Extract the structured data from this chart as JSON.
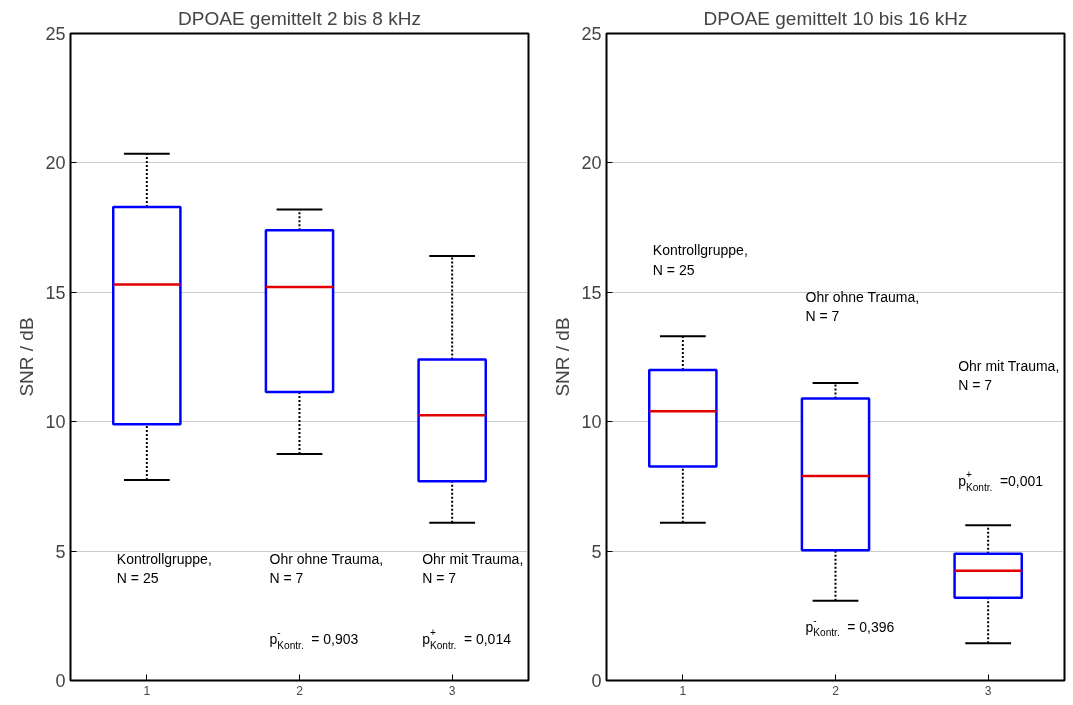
{
  "chart_data": [
    {
      "type": "box",
      "title": "DPOAE gemittelt 2 bis 8 kHz",
      "ylabel": "SNR / dB",
      "categories": [
        "1",
        "2",
        "3"
      ],
      "ylim": [
        0,
        25
      ],
      "yticks": [
        0,
        5,
        10,
        15,
        20,
        25
      ],
      "grid": "y",
      "series": [
        {
          "color": "#0000ff",
          "boxes": [
            {
              "low": 7.75,
              "q1": 9.9,
              "median": 15.3,
              "q3": 18.3,
              "high": 20.35
            },
            {
              "low": 8.75,
              "q1": 11.15,
              "median": 15.2,
              "q3": 17.4,
              "high": 18.2
            },
            {
              "low": 6.1,
              "q1": 7.7,
              "median": 10.25,
              "q3": 12.4,
              "high": 16.4
            }
          ]
        }
      ],
      "annotations": [
        "Kontrollgruppe,\nN = 25",
        "Ohr ohne Trauma,\nN = 7",
        "Ohr mit Trauma,\nN = 7",
        "p$^{-}$$_{Kontr.}$ = 0,903",
        "p$^{+}$$_{Kontr.}$ = 0,014"
      ]
    },
    {
      "type": "box",
      "title": "DPOAE gemittelt 10 bis 16 kHz",
      "ylabel": "SNR / dB",
      "categories": [
        "1",
        "2",
        "3"
      ],
      "ylim": [
        0,
        25
      ],
      "yticks": [
        0,
        5,
        10,
        15,
        20,
        25
      ],
      "grid": "y",
      "series": [
        {
          "color": "#0000ff",
          "boxes": [
            {
              "low": 6.1,
              "q1": 8.27,
              "median": 10.4,
              "q3": 12.0,
              "high": 13.3
            },
            {
              "low": 3.08,
              "q1": 5.03,
              "median": 7.9,
              "q3": 10.9,
              "high": 11.5
            },
            {
              "low": 1.44,
              "q1": 3.2,
              "median": 4.24,
              "q3": 4.9,
              "high": 6.0
            }
          ]
        }
      ],
      "annotations": [
        "Kontrollgruppe,\nN = 25",
        "Ohr ohne Trauma,\nN = 7",
        "Ohr mit Trauma,\nN = 7",
        "p$^{-}$$_{Kontr.}$ = 0,396",
        "p$^{+}$$_{Kontr.}$ =0,001"
      ]
    }
  ]
}
